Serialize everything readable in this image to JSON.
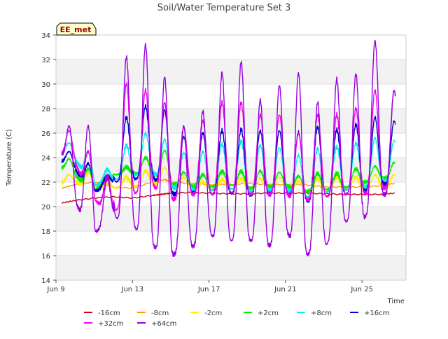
{
  "chart_data": {
    "type": "line",
    "title": "Soil/Water Temperature Set 3",
    "xlabel": "Time",
    "ylabel": "Temperature (C)",
    "site_label": "EE_met",
    "x_unit": "day of June",
    "xlim": [
      9,
      27.3
    ],
    "ylim": [
      14,
      34
    ],
    "yticks": [
      14,
      16,
      18,
      20,
      22,
      24,
      26,
      28,
      30,
      32,
      34
    ],
    "xticks": [
      {
        "value": 9,
        "label": "Jun 9"
      },
      {
        "value": 13,
        "label": "Jun 13"
      },
      {
        "value": 17,
        "label": "Jun 17"
      },
      {
        "value": 21,
        "label": "Jun 21"
      },
      {
        "value": 25,
        "label": "Jun 25"
      }
    ],
    "grid": "horizontal alternating bands",
    "legend_position": "bottom",
    "series": [
      {
        "name": "-16cm",
        "color": "#cc0000",
        "x": [
          9.3,
          10,
          11,
          12,
          13,
          14,
          14.5,
          15,
          16,
          17,
          18,
          19,
          20,
          21,
          22,
          23,
          24,
          25,
          26,
          26.7
        ],
        "y": [
          20.3,
          20.5,
          20.7,
          20.8,
          20.7,
          20.9,
          21.0,
          21.1,
          21.15,
          21.1,
          21.05,
          21.05,
          21.1,
          21.1,
          21.1,
          21.05,
          21.0,
          21.0,
          21.0,
          21.1
        ]
      },
      {
        "name": "-8cm",
        "color": "#ff9900",
        "x": [
          9.3,
          10,
          11,
          12,
          13,
          14,
          14.7,
          15,
          16,
          17,
          18,
          19,
          20,
          21,
          22,
          23,
          24,
          25,
          26,
          26.7
        ],
        "y": [
          21.5,
          21.8,
          22.0,
          21.6,
          21.5,
          22.0,
          22.2,
          22.0,
          21.9,
          21.8,
          21.8,
          21.9,
          21.8,
          21.8,
          21.8,
          21.6,
          21.6,
          21.6,
          21.7,
          21.9
        ]
      },
      {
        "name": "-2cm",
        "min": [
          21.8,
          22.0,
          21.5,
          21.5,
          21.6,
          22.0,
          21.6,
          21.5,
          21.4,
          21.5,
          21.4,
          21.6,
          21.5,
          21.3,
          21.3,
          21.5,
          21.5,
          21.6
        ],
        "max": [
          22.6,
          22.8,
          22.0,
          22.4,
          22.9,
          23.2,
          22.4,
          22.0,
          22.2,
          22.3,
          22.3,
          22.4,
          22.1,
          22.3,
          22.4,
          22.4,
          22.6,
          22.6
        ],
        "amp": 0.5,
        "color": "#ffee00"
      },
      {
        "name": "+2cm",
        "min": [
          23.4,
          22.5,
          21.3,
          22.6,
          22.7,
          22.8,
          21.8,
          21.7,
          21.6,
          21.8,
          21.5,
          21.6,
          21.7,
          21.2,
          21.4,
          21.5,
          21.9,
          22.3
        ],
        "max": [
          23.9,
          23.1,
          22.3,
          23.2,
          24.0,
          24.6,
          22.8,
          22.6,
          22.9,
          22.9,
          22.9,
          22.8,
          22.5,
          22.7,
          22.7,
          23.1,
          23.3,
          23.6
        ],
        "amp": 1.5,
        "color": "#00ee00"
      },
      {
        "name": "+8cm",
        "min": [
          24.6,
          23.8,
          21.7,
          22.2,
          22.5,
          22.9,
          21.6,
          21.4,
          21.3,
          21.5,
          21.2,
          21.3,
          21.4,
          20.7,
          21.2,
          21.3,
          21.5,
          22.1
        ],
        "max": [
          25.2,
          24.5,
          23.0,
          25.0,
          26.0,
          25.5,
          24.4,
          24.5,
          25.1,
          25.3,
          25.0,
          24.8,
          24.2,
          24.7,
          24.9,
          25.2,
          25.6,
          25.4
        ],
        "amp": 2.5,
        "color": "#00eeee"
      },
      {
        "name": "+16cm",
        "min": [
          24.0,
          23.0,
          21.2,
          22.0,
          22.2,
          22.5,
          21.0,
          21.1,
          21.0,
          21.1,
          20.9,
          21.0,
          21.1,
          20.4,
          20.8,
          21.0,
          21.2,
          21.8
        ],
        "max": [
          24.5,
          23.5,
          22.5,
          27.3,
          28.2,
          27.9,
          25.7,
          26.0,
          26.2,
          26.3,
          26.2,
          26.2,
          26.1,
          26.5,
          26.3,
          26.7,
          27.3,
          27.0
        ],
        "amp": 3.5,
        "color": "#0000cc"
      },
      {
        "name": "+32cm",
        "min": [
          24.6,
          23.5,
          20.5,
          19.5,
          21.0,
          21.8,
          20.5,
          21.0,
          21.0,
          21.2,
          21.0,
          21.0,
          21.0,
          20.5,
          20.8,
          21.0,
          21.0,
          21.5
        ],
        "max": [
          26.2,
          24.5,
          22.5,
          30.0,
          29.5,
          28.5,
          26.5,
          27.0,
          28.5,
          28.5,
          27.5,
          27.5,
          26.0,
          27.5,
          27.5,
          28.0,
          29.5,
          29.5
        ],
        "amp": 3.8,
        "color": "#ee00ee"
      },
      {
        "name": "+64cm",
        "min": [
          26.0,
          20.3,
          17.8,
          19.2,
          18.5,
          16.8,
          16.0,
          16.6,
          17.7,
          17.2,
          17.4,
          16.6,
          18.0,
          16.0,
          16.6,
          18.8,
          18.8,
          21.0
        ],
        "max": [
          26.6,
          26.6,
          22.3,
          32.2,
          33.2,
          30.6,
          26.6,
          27.8,
          30.9,
          31.8,
          28.7,
          29.9,
          30.9,
          28.5,
          30.4,
          30.8,
          33.5,
          29.5
        ],
        "amp": 6.0,
        "color": "#9900dd"
      }
    ]
  }
}
